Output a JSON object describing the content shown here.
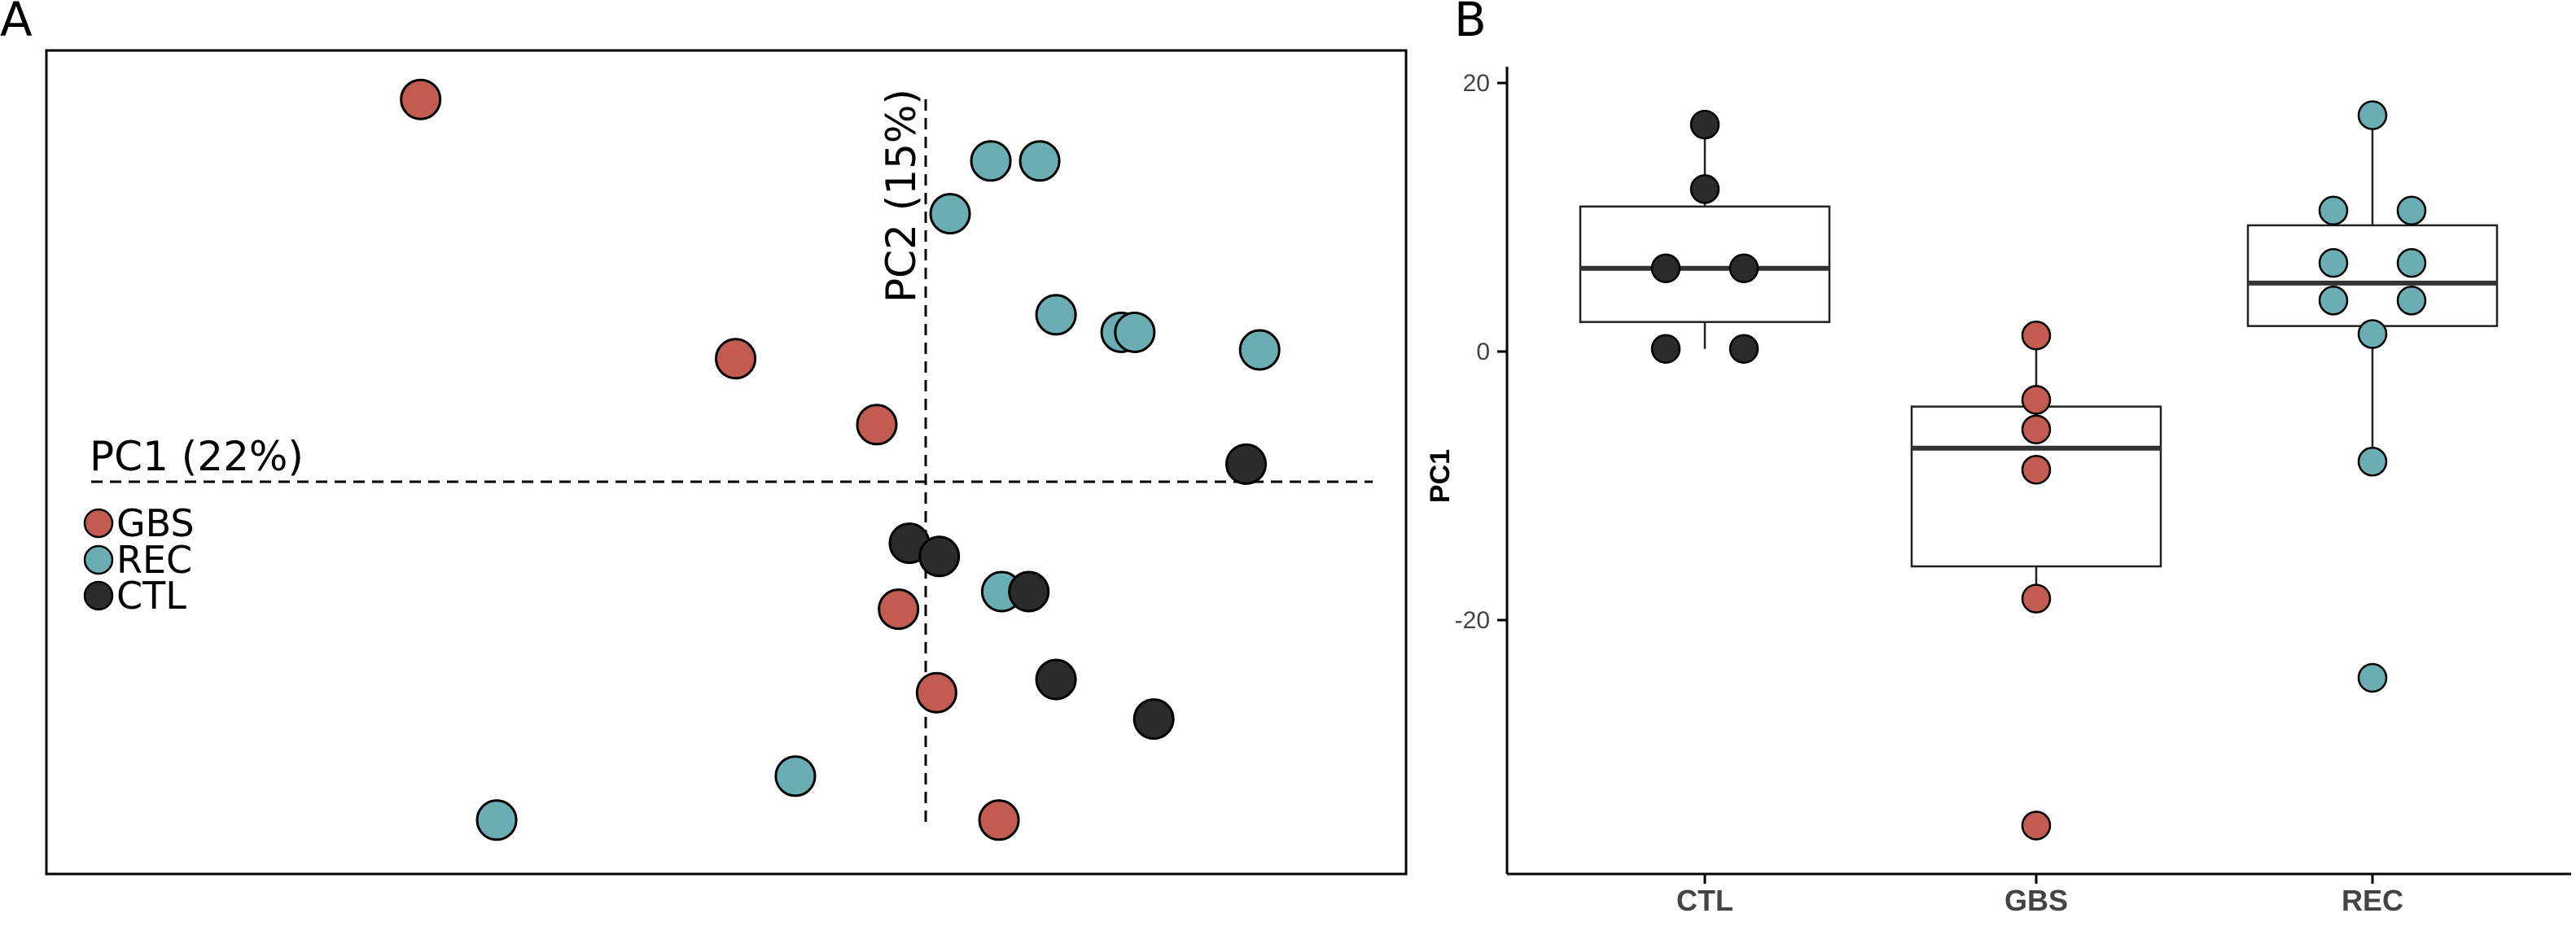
{
  "colors": {
    "GBS": "#c25b50",
    "REC": "#6aadb3",
    "CTL": "#2b2b2b"
  },
  "panelA": {
    "letter": "A",
    "pc1_label": "PC1 (22%)",
    "pc2_label": "PC2 (15%)",
    "legend": [
      "GBS",
      "REC",
      "CTL"
    ]
  },
  "panelB": {
    "letter": "B"
  },
  "chart_data": [
    {
      "type": "scatter",
      "panel": "A",
      "xlim": [
        -1,
        1
      ],
      "ylim": [
        -1,
        1
      ],
      "grid": false,
      "legend_position": "left",
      "x_axis_label": "PC1 (22%)",
      "y_axis_label": "PC2 (15%)",
      "series": [
        {
          "name": "GBS",
          "points": [
            [
              -0.93,
              0.87
            ],
            [
              -0.35,
              0.28
            ],
            [
              -0.09,
              0.13
            ],
            [
              -0.05,
              -0.29
            ],
            [
              0.02,
              -0.48
            ],
            [
              0.135,
              -0.77
            ]
          ]
        },
        {
          "name": "REC",
          "points": [
            [
              0.045,
              0.61
            ],
            [
              0.12,
              0.73
            ],
            [
              0.21,
              0.73
            ],
            [
              0.24,
              0.38
            ],
            [
              0.36,
              0.34
            ],
            [
              0.385,
              0.34
            ],
            [
              0.615,
              0.3
            ],
            [
              0.14,
              -0.25
            ],
            [
              -0.24,
              -0.67
            ],
            [
              -0.79,
              -0.77
            ]
          ]
        },
        {
          "name": "CTL",
          "points": [
            [
              0.59,
              0.04
            ],
            [
              -0.03,
              -0.14
            ],
            [
              0.025,
              -0.17
            ],
            [
              0.19,
              -0.25
            ],
            [
              0.24,
              -0.45
            ],
            [
              0.42,
              -0.54
            ]
          ]
        }
      ]
    },
    {
      "type": "box",
      "panel": "B",
      "categories": [
        "CTL",
        "GBS",
        "REC"
      ],
      "ylabel": "PC1",
      "ylim": [
        -38,
        21
      ],
      "yticks": [
        20,
        0,
        -20
      ],
      "boxes": [
        {
          "category": "CTL",
          "q1": 2.2,
          "median": 6.2,
          "q3": 10.8,
          "whisker_low": 0.2,
          "whisker_high": 16.9
        },
        {
          "category": "GBS",
          "q1": -16,
          "median": -7.2,
          "q3": -4.1,
          "whisker_low": -18.4,
          "whisker_high": 1.2
        },
        {
          "category": "REC",
          "q1": 1.9,
          "median": 5.1,
          "q3": 9.4,
          "whisker_low": -8.2,
          "whisker_high": 17.6
        }
      ],
      "points": [
        {
          "category": "CTL",
          "offset": 0,
          "value": 16.9
        },
        {
          "category": "CTL",
          "offset": 0,
          "value": 12.1
        },
        {
          "category": "CTL",
          "offset": -0.2,
          "value": 6.2
        },
        {
          "category": "CTL",
          "offset": 0.2,
          "value": 6.2
        },
        {
          "category": "CTL",
          "offset": -0.2,
          "value": 0.2
        },
        {
          "category": "CTL",
          "offset": 0.2,
          "value": 0.2
        },
        {
          "category": "GBS",
          "offset": 0,
          "value": 1.2
        },
        {
          "category": "GBS",
          "offset": 0,
          "value": -3.6
        },
        {
          "category": "GBS",
          "offset": 0,
          "value": -5.8
        },
        {
          "category": "GBS",
          "offset": 0,
          "value": -8.8
        },
        {
          "category": "GBS",
          "offset": 0,
          "value": -18.4
        },
        {
          "category": "GBS",
          "offset": 0,
          "value": -35.3
        },
        {
          "category": "REC",
          "offset": 0,
          "value": 17.6
        },
        {
          "category": "REC",
          "offset": -0.2,
          "value": 10.5
        },
        {
          "category": "REC",
          "offset": 0.2,
          "value": 10.5
        },
        {
          "category": "REC",
          "offset": -0.2,
          "value": 6.6
        },
        {
          "category": "REC",
          "offset": 0.2,
          "value": 6.6
        },
        {
          "category": "REC",
          "offset": -0.2,
          "value": 3.8
        },
        {
          "category": "REC",
          "offset": 0.2,
          "value": 3.8
        },
        {
          "category": "REC",
          "offset": 0,
          "value": 1.3
        },
        {
          "category": "REC",
          "offset": 0,
          "value": -8.2
        },
        {
          "category": "REC",
          "offset": 0,
          "value": -24.3
        }
      ]
    }
  ]
}
